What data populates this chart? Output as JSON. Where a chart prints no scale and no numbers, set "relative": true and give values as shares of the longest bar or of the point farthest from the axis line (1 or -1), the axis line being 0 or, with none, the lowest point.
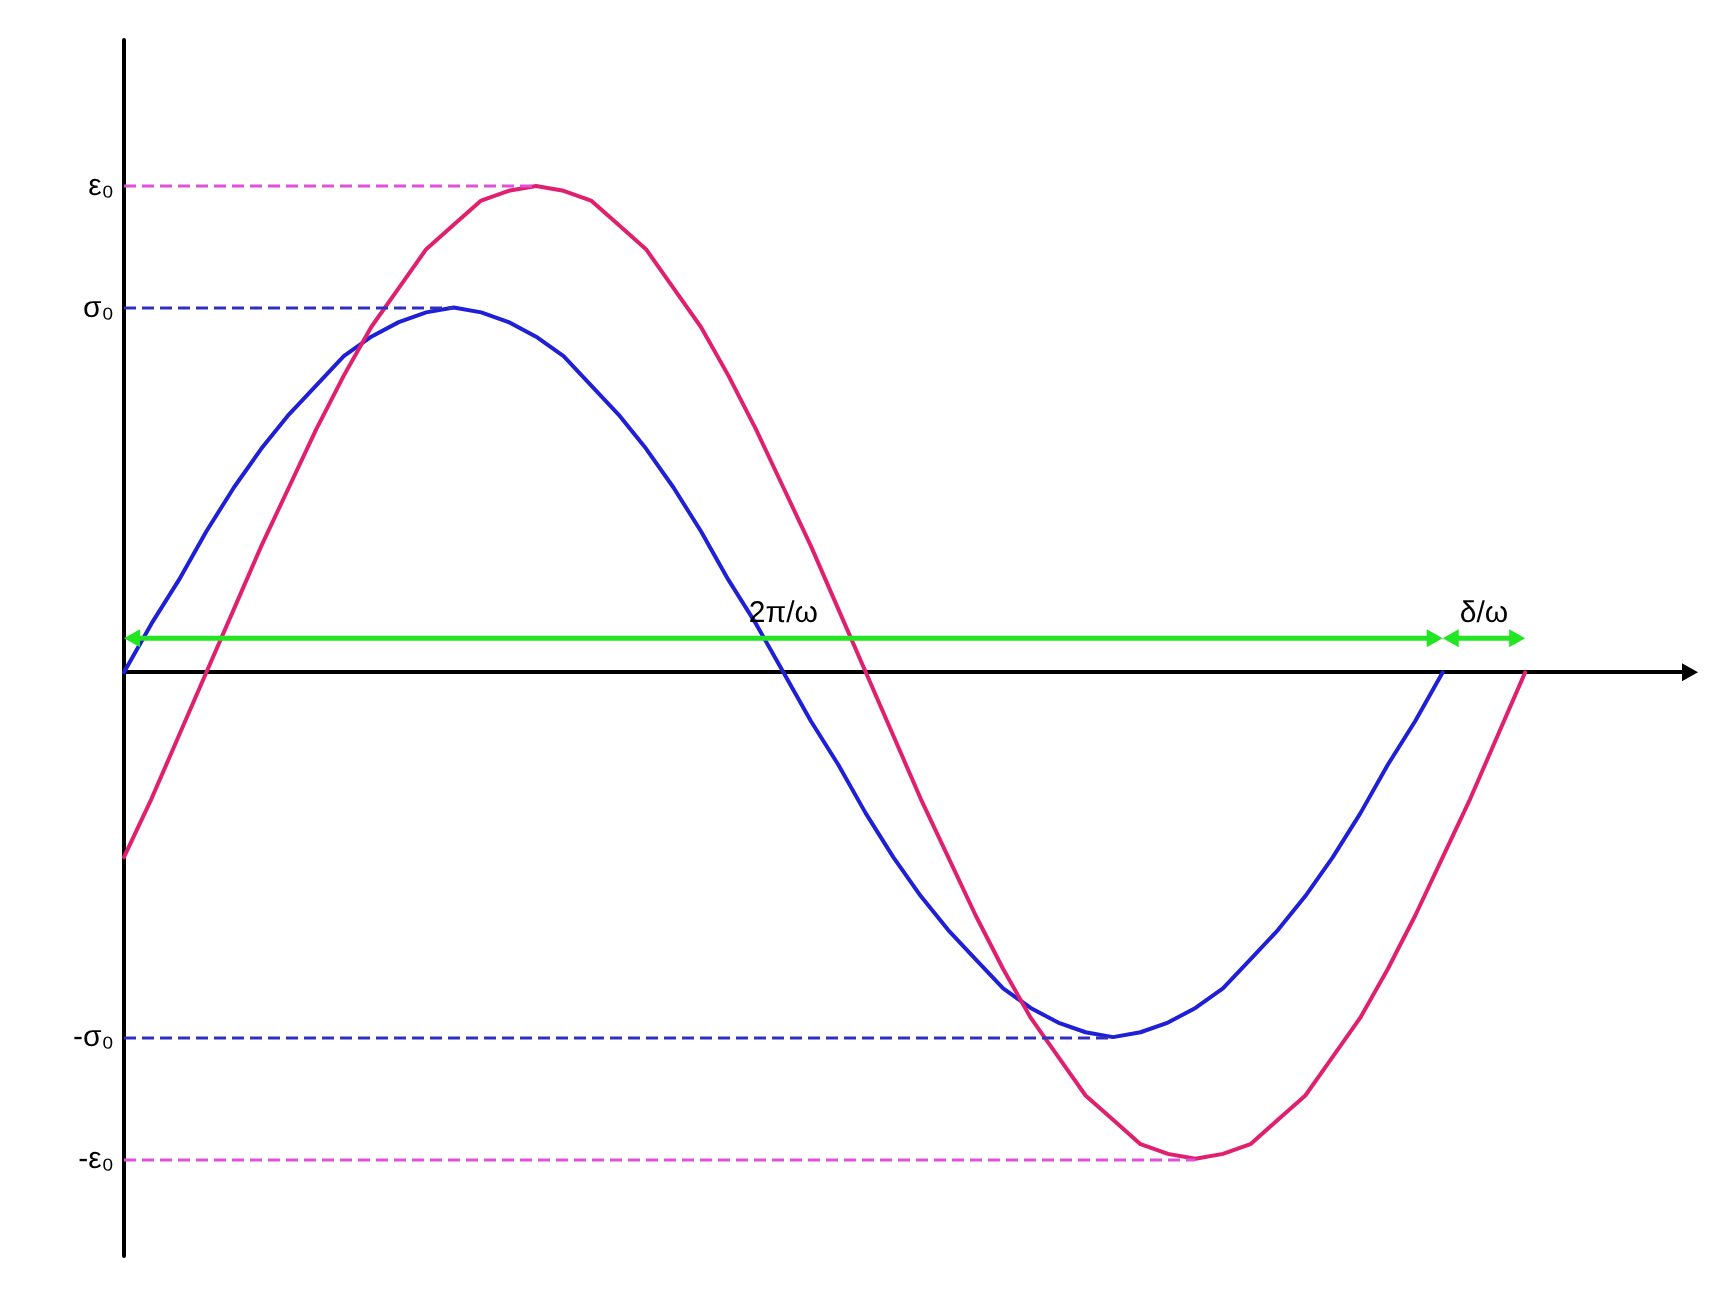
{
  "chart_data": {
    "type": "line",
    "relative": true,
    "categories": [
      null,
      null,
      null,
      null,
      null,
      null,
      null,
      null,
      null,
      null,
      null,
      null,
      null,
      null,
      null,
      null,
      null,
      null,
      null,
      null,
      null,
      null,
      null,
      null,
      null,
      null,
      null,
      null,
      null,
      null,
      null,
      null,
      null,
      null,
      null,
      null,
      null,
      null,
      null,
      null,
      null,
      null,
      null,
      null,
      null,
      null,
      null,
      null,
      null,
      null,
      null,
      null
    ],
    "series": [
      {
        "color": "#1f1fd8",
        "values": [
          0,
          0.1,
          0.19,
          0.29,
          0.38,
          0.46,
          0.53,
          0.59,
          0.65,
          0.69,
          0.72,
          0.74,
          0.75,
          0.74,
          0.72,
          0.69,
          0.65,
          0.59,
          0.53,
          0.46,
          0.38,
          0.29,
          0.19,
          0.1,
          0,
          -0.1,
          -0.19,
          -0.29,
          -0.38,
          -0.46,
          -0.53,
          -0.59,
          -0.65,
          -0.69,
          -0.72,
          -0.74,
          -0.75,
          -0.74,
          -0.72,
          -0.69,
          -0.65,
          -0.59,
          -0.53,
          -0.46,
          -0.38,
          -0.29,
          -0.19,
          -0.1,
          0,
          null,
          null,
          null
        ]
      },
      {
        "color": "#e0206e",
        "values": [
          -0.38,
          -0.26,
          -0.13,
          0,
          0.13,
          0.26,
          0.38,
          0.5,
          0.61,
          0.71,
          0.79,
          0.87,
          0.92,
          0.97,
          0.99,
          1,
          0.99,
          0.97,
          0.92,
          0.87,
          0.79,
          0.71,
          0.61,
          0.5,
          0.38,
          0.26,
          0.13,
          0,
          -0.13,
          -0.26,
          -0.38,
          -0.5,
          -0.61,
          -0.71,
          -0.79,
          -0.87,
          -0.92,
          -0.97,
          -0.99,
          -1,
          -0.99,
          -0.97,
          -0.92,
          -0.87,
          -0.79,
          -0.71,
          -0.61,
          -0.5,
          -0.38,
          -0.26,
          -0.13,
          0
        ]
      }
    ],
    "ref_lines": [
      {
        "axis": "y",
        "value": 1,
        "label": "ε₀",
        "color": "#e050d8",
        "line_style": "dashed"
      },
      {
        "axis": "y",
        "value": 0.75,
        "label": "σ₀",
        "color": "#3030c0",
        "line_style": "dashed"
      },
      {
        "axis": "y",
        "value": -0.75,
        "label": "-σ₀",
        "color": "#3030c0",
        "line_style": "dashed"
      },
      {
        "axis": "y",
        "value": -1,
        "label": "-ε₀",
        "color": "#e050d8",
        "line_style": "dashed"
      }
    ],
    "annotations": [
      "2π/ω",
      "δ/ω"
    ],
    "grid": false,
    "marker": "none",
    "line_style": "solid"
  }
}
